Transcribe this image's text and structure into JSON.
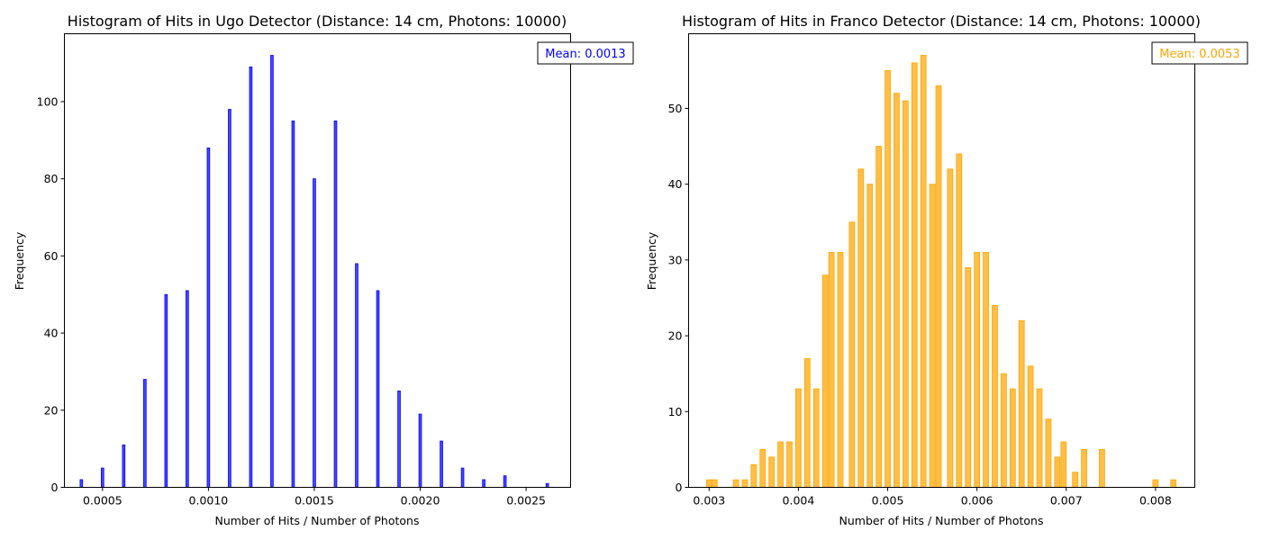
{
  "chart_data": [
    {
      "type": "bar",
      "title": "Histogram of Hits in Ugo Detector (Distance: 14 cm, Photons: 10000)",
      "xlabel": "Number of Hits / Number of Photons",
      "ylabel": "Frequency",
      "color": "#0000ff",
      "xlim": [
        0.00032,
        0.00271
      ],
      "ylim": [
        0,
        117.6
      ],
      "xticks": [
        0.0005,
        0.001,
        0.0015,
        0.002,
        0.0025
      ],
      "xtick_labels": [
        "0.0005",
        "0.0010",
        "0.0015",
        "0.0020",
        "0.0025"
      ],
      "yticks": [
        0,
        20,
        40,
        60,
        80,
        100
      ],
      "ytick_labels": [
        "0",
        "20",
        "40",
        "60",
        "80",
        "100"
      ],
      "bar_width": 1.2e-05,
      "x": [
        0.0004,
        0.0005,
        0.0006,
        0.0007,
        0.0008,
        0.0009,
        0.001,
        0.0011,
        0.0012,
        0.0013,
        0.0014,
        0.0015,
        0.0016,
        0.0017,
        0.0018,
        0.0019,
        0.002,
        0.0021,
        0.0022,
        0.0023,
        0.0024,
        0.0026
      ],
      "values": [
        2,
        5,
        11,
        28,
        50,
        51,
        88,
        98,
        109,
        112,
        95,
        80,
        95,
        58,
        51,
        25,
        19,
        12,
        5,
        2,
        3,
        1
      ],
      "annotation": "Mean: 0.0013",
      "grid": false
    },
    {
      "type": "bar",
      "title": "Histogram of Hits in Franco Detector (Distance: 14 cm, Photons: 10000)",
      "xlabel": "Number of Hits / Number of Photons",
      "ylabel": "Frequency",
      "color": "#ffa500",
      "xlim": [
        0.00277,
        0.00844
      ],
      "ylim": [
        0,
        59.85
      ],
      "xticks": [
        0.003,
        0.004,
        0.005,
        0.006,
        0.007,
        0.008
      ],
      "xtick_labels": [
        "0.003",
        "0.004",
        "0.005",
        "0.006",
        "0.007",
        "0.008"
      ],
      "yticks": [
        0,
        10,
        20,
        30,
        40,
        50
      ],
      "ytick_labels": [
        "0",
        "10",
        "20",
        "30",
        "40",
        "50"
      ],
      "bar_width": 6e-05,
      "x": [
        0.003,
        0.00306,
        0.0033,
        0.0034,
        0.0035,
        0.0036,
        0.0037,
        0.0038,
        0.0039,
        0.004,
        0.0041,
        0.0042,
        0.0043,
        0.00437,
        0.00447,
        0.0046,
        0.0047,
        0.0048,
        0.0049,
        0.005,
        0.0051,
        0.0052,
        0.0053,
        0.0054,
        0.0055,
        0.00557,
        0.0057,
        0.0058,
        0.0059,
        0.006,
        0.0061,
        0.0062,
        0.0063,
        0.0064,
        0.0065,
        0.0066,
        0.0067,
        0.0068,
        0.0069,
        0.00697,
        0.0071,
        0.0072,
        0.0074,
        0.008,
        0.0082
      ],
      "values": [
        1,
        1,
        1,
        1,
        3,
        5,
        4,
        6,
        6,
        13,
        17,
        13,
        28,
        31,
        31,
        35,
        42,
        40,
        45,
        55,
        52,
        51,
        56,
        57,
        40,
        53,
        42,
        44,
        29,
        31,
        31,
        24,
        15,
        13,
        22,
        16,
        13,
        9,
        4,
        6,
        2,
        5,
        5,
        1,
        1
      ],
      "annotation": "Mean: 0.0053",
      "grid": false
    }
  ]
}
